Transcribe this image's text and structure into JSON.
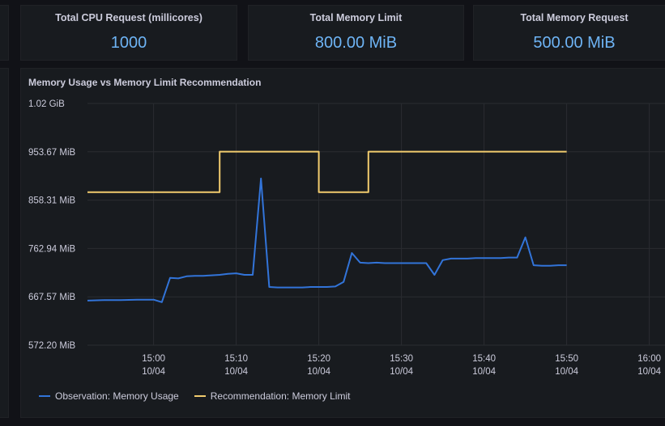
{
  "stats": [
    {
      "title": "Total CPU Request (millicores)",
      "value": "1000"
    },
    {
      "title": "Total Memory Limit",
      "value": "800.00 MiB"
    },
    {
      "title": "Total Memory Request",
      "value": "500.00 MiB"
    }
  ],
  "panel": {
    "title": "Memory Usage vs Memory Limit Recommendation"
  },
  "colors": {
    "observation": "#3274d9",
    "recommendation": "#f2cc6e",
    "value_text": "#6eb4f5"
  },
  "chart_data": {
    "type": "line",
    "title": "Memory Usage vs Memory Limit Recommendation",
    "xlabel": "",
    "ylabel": "",
    "grid": true,
    "legend_position": "bottom-left",
    "y_ticks": [
      "572.20 MiB",
      "667.57 MiB",
      "762.94 MiB",
      "858.31 MiB",
      "953.67 MiB",
      "1.02 GiB"
    ],
    "y_range_mib": [
      572.2,
      1049.04
    ],
    "x_range": [
      "10/04 14:52",
      "10/04 16:02"
    ],
    "x_ticks": [
      {
        "time": "15:00",
        "date": "10/04"
      },
      {
        "time": "15:10",
        "date": "10/04"
      },
      {
        "time": "15:20",
        "date": "10/04"
      },
      {
        "time": "15:30",
        "date": "10/04"
      },
      {
        "time": "15:40",
        "date": "10/04"
      },
      {
        "time": "15:50",
        "date": "10/04"
      },
      {
        "time": "16:00",
        "date": "10/04"
      }
    ],
    "series": [
      {
        "name": "Observation: Memory Usage",
        "x": [
          "14:52",
          "14:54",
          "14:56",
          "14:58",
          "15:00",
          "15:01",
          "15:02",
          "15:03",
          "15:04",
          "15:05",
          "15:06",
          "15:07",
          "15:08",
          "15:09",
          "15:10",
          "15:11",
          "15:12",
          "15:13",
          "15:14",
          "15:15",
          "15:16",
          "15:17",
          "15:18",
          "15:19",
          "15:20",
          "15:21",
          "15:22",
          "15:23",
          "15:24",
          "15:25",
          "15:26",
          "15:27",
          "15:28",
          "15:29",
          "15:30",
          "15:31",
          "15:32",
          "15:33",
          "15:34",
          "15:35",
          "15:36",
          "15:37",
          "15:38",
          "15:39",
          "15:40",
          "15:41",
          "15:42",
          "15:43",
          "15:44",
          "15:45",
          "15:46",
          "15:47",
          "15:48",
          "15:49",
          "15:50"
        ],
        "values": [
          660,
          661,
          661,
          662,
          662,
          657,
          705,
          704,
          708,
          709,
          709,
          710,
          711,
          713,
          714,
          711,
          711,
          901,
          687,
          686,
          686,
          686,
          686,
          687,
          687,
          687,
          688,
          697,
          754,
          735,
          734,
          735,
          734,
          734,
          734,
          734,
          734,
          734,
          711,
          740,
          743,
          743,
          743,
          744,
          744,
          744,
          744,
          745,
          745,
          785,
          730,
          729,
          729,
          730,
          730
        ]
      },
      {
        "name": "Recommendation: Memory Limit",
        "x": [
          "14:52",
          "15:00",
          "15:08",
          "15:08",
          "15:20",
          "15:20",
          "15:26",
          "15:26",
          "15:50"
        ],
        "values": [
          874,
          874,
          874,
          954,
          954,
          874,
          874,
          954,
          954
        ]
      }
    ]
  }
}
